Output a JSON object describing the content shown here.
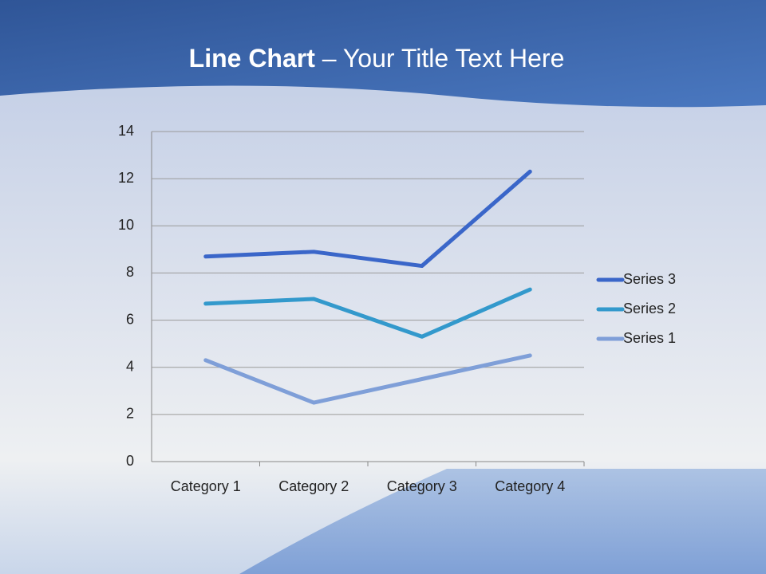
{
  "chart_data": {
    "type": "line",
    "stacked": true,
    "title": {
      "bold": "Line Chart",
      "rest": "– Your Title Text Here"
    },
    "categories": [
      "Category 1",
      "Category 2",
      "Category 3",
      "Category 4"
    ],
    "series": [
      {
        "name": "Series 1",
        "color": "#7f9fd8",
        "values": [
          4.3,
          2.5,
          3.5,
          4.5
        ]
      },
      {
        "name": "Series 2",
        "color": "#3399cc",
        "values": [
          2.4,
          4.4,
          1.8,
          2.8
        ]
      },
      {
        "name": "Series 3",
        "color": "#3a66c9",
        "values": [
          2,
          2,
          3,
          5
        ]
      }
    ],
    "ylim": [
      0,
      14
    ],
    "yticks": [
      0,
      2,
      4,
      6,
      8,
      10,
      12,
      14
    ],
    "grid": true,
    "legend": "right"
  }
}
